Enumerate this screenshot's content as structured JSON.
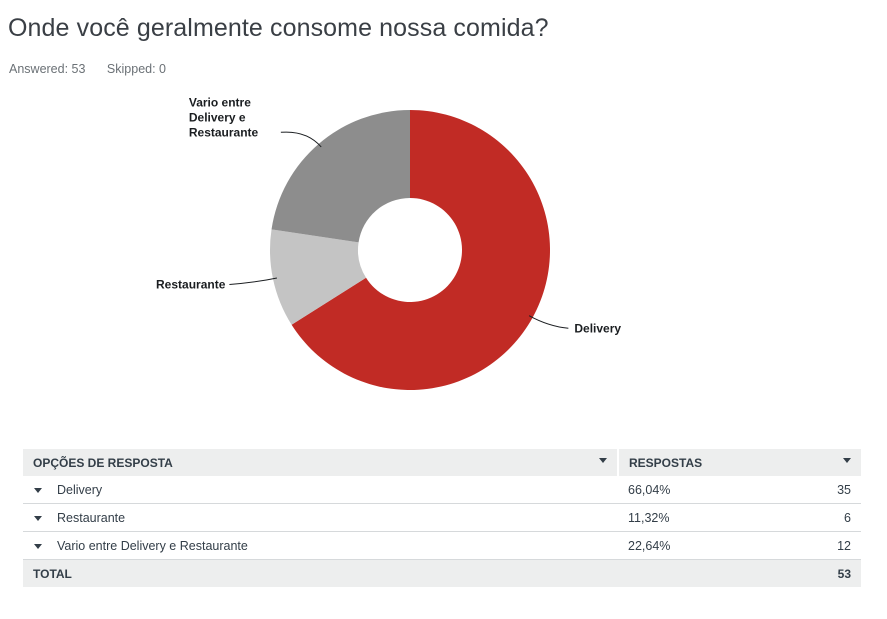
{
  "question": {
    "title": "Onde você geralmente consome nossa comida?",
    "answered_label": "Answered: 53",
    "skipped_label": "Skipped: 0"
  },
  "chart_data": {
    "type": "pie",
    "donut": true,
    "categories": [
      "Delivery",
      "Restaurante",
      "Vario entre Delivery e Restaurante"
    ],
    "values": [
      66.04,
      11.32,
      22.64
    ],
    "counts": [
      35,
      6,
      12
    ],
    "colors": [
      "#c12b25",
      "#c4c4c4",
      "#8d8d8d"
    ],
    "labels": [
      [
        "Delivery"
      ],
      [
        "Restaurante"
      ],
      [
        "Vario entre",
        "Delivery e",
        "Restaurante"
      ]
    ]
  },
  "table": {
    "headers": {
      "options": "OPÇÕES DE RESPOSTA",
      "responses": "RESPOSTAS"
    },
    "rows": [
      {
        "label": "Delivery",
        "percent": "66,04%",
        "count": "35"
      },
      {
        "label": "Restaurante",
        "percent": "11,32%",
        "count": "6"
      },
      {
        "label": "Vario entre Delivery e Restaurante",
        "percent": "22,64%",
        "count": "12"
      }
    ],
    "total": {
      "label": "TOTAL",
      "count": "53"
    }
  }
}
